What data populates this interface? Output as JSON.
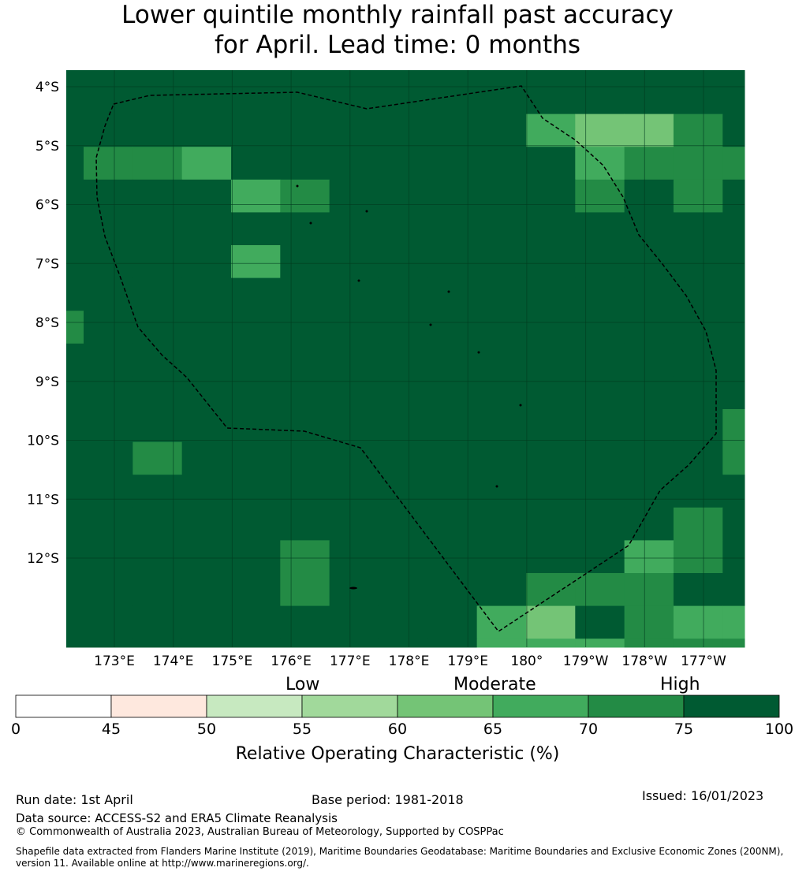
{
  "title_line1": "Lower quintile monthly rainfall past accuracy",
  "title_line2": "for April. Lead time: 0 months",
  "x_ticks": [
    "173°E",
    "174°E",
    "175°E",
    "176°E",
    "177°E",
    "178°E",
    "179°E",
    "180°",
    "179°W",
    "178°W",
    "177°W"
  ],
  "y_ticks": [
    "4°S",
    "5°S",
    "6°S",
    "7°S",
    "8°S",
    "9°S",
    "10°S",
    "11°S",
    "12°S"
  ],
  "levels": {
    "low": "Low",
    "moderate": "Moderate",
    "high": "High"
  },
  "colorbar": {
    "bounds": [
      "0",
      "45",
      "50",
      "55",
      "60",
      "65",
      "70",
      "75",
      "100"
    ],
    "colors": [
      "#ffffff",
      "#fee8de",
      "#c7e9c0",
      "#a1d99b",
      "#74c476",
      "#41ab5d",
      "#238b45",
      "#005a32"
    ],
    "label": "Relative Operating Characteristic (%)"
  },
  "chart_data": {
    "type": "heatmap",
    "xlim": [
      "172.2°E",
      "177.6°W"
    ],
    "ylim": [
      "3.7°S",
      "13.5°S"
    ],
    "grid": [
      "777777777777777",
      "777777777777777",
      "777777777754467",
      "766577777775666",
      "777756777776767",
      "777777777777777",
      "777757777777777",
      "777777777777777",
      "677777777777777",
      "777777777777777",
      "777777777777777",
      "777777777777776",
      "776777777777776",
      "777777777777777",
      "777777777777767",
      "777776777777567",
      "777776777766677",
      "777777777547655",
      "777777777555666"
    ]
  },
  "footer": {
    "run_date": "Run date: 1st April",
    "base_period": "Base period: 1981-2018",
    "issued": "Issued: 16/01/2023",
    "data_source": "Data source: ACCESS-S2 and ERA5 Climate Reanalysis",
    "copyright": "© Commonwealth of Australia 2023, Australian Bureau of Meteorology, Supported by COSPPac",
    "shapefile_1": "Shapefile data extracted from Flanders Marine Institute (2019), Maritime Boundaries Geodatabase: Maritime Boundaries and Exclusive Economic Zones (200NM),",
    "shapefile_2": "version 11. Available online at http://www.marineregions.org/."
  }
}
